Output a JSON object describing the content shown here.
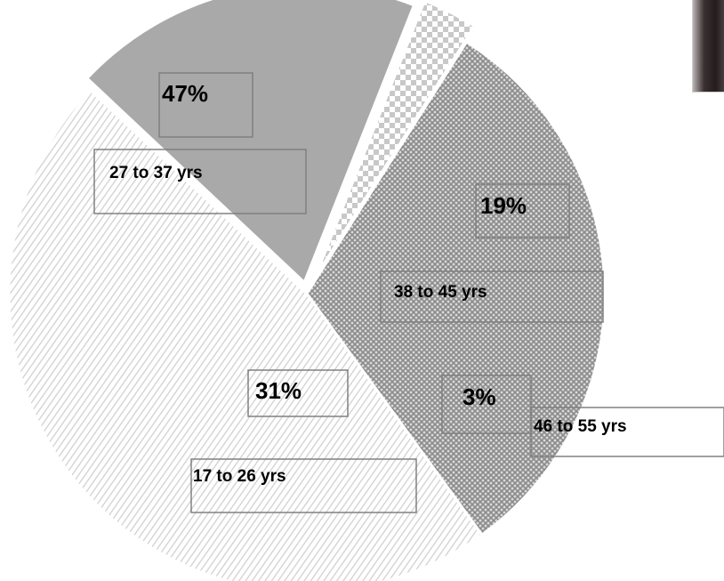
{
  "chart_data": {
    "type": "pie",
    "title": "",
    "slices": [
      {
        "label": "27 to 37 yrs",
        "value": 47,
        "value_label": "47%",
        "color": "#cfcfcf",
        "pattern": "diagonal-stripes"
      },
      {
        "label": "38 to 45 yrs",
        "value": 19,
        "value_label": "19%",
        "color": "#a9a9a9",
        "pattern": "solid"
      },
      {
        "label": "46 to 55 yrs",
        "value": 3,
        "value_label": "3%",
        "color": "#c8c8c8",
        "pattern": "checker"
      },
      {
        "label": "17 to 26 yrs",
        "value": 31,
        "value_label": "31%",
        "color": "#9a9a9a",
        "pattern": "crosshatch"
      }
    ],
    "legend": false
  },
  "decor": {
    "photo_icon": "portrait-photo"
  }
}
